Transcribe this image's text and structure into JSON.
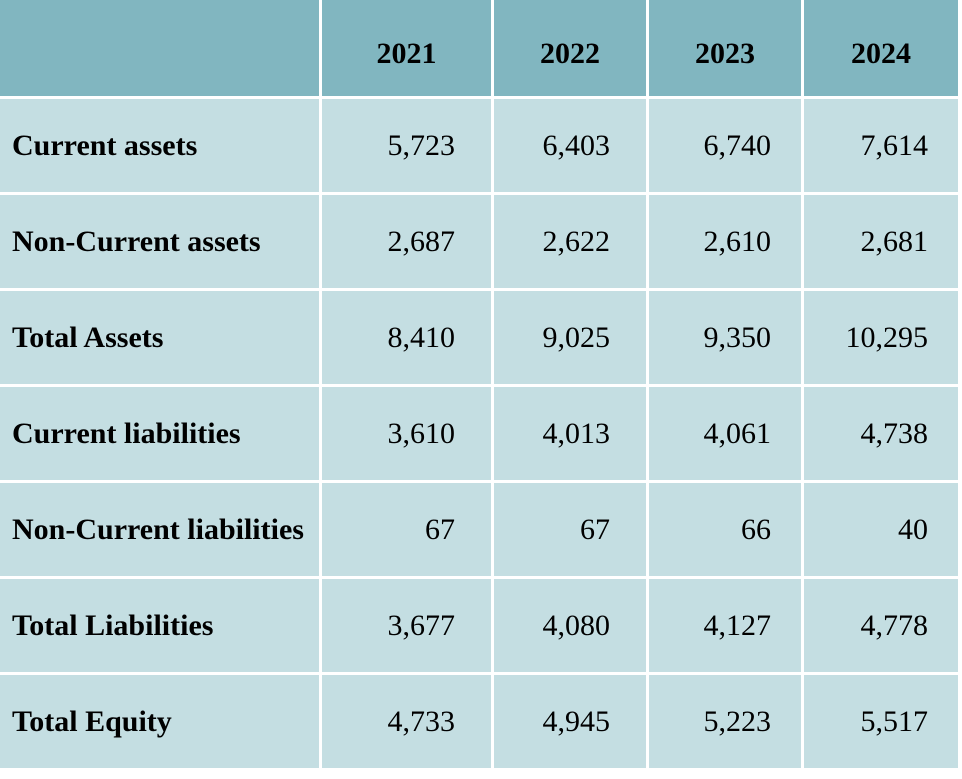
{
  "table": {
    "headers": [
      "",
      "2021",
      "2022",
      "2023",
      "2024"
    ],
    "rows": [
      {
        "label": "Current assets",
        "values": [
          "5,723",
          "6,403",
          "6,740",
          "7,614"
        ]
      },
      {
        "label": "Non-Current assets",
        "values": [
          "2,687",
          "2,622",
          "2,610",
          "2,681"
        ]
      },
      {
        "label": "Total Assets",
        "values": [
          "8,410",
          "9,025",
          "9,350",
          "10,295"
        ]
      },
      {
        "label": "Current liabilities",
        "values": [
          "3,610",
          "4,013",
          "4,061",
          "4,738"
        ]
      },
      {
        "label": "Non-Current liabilities",
        "values": [
          "67",
          "67",
          "66",
          "40"
        ]
      },
      {
        "label": "Total Liabilities",
        "values": [
          "3,677",
          "4,080",
          "4,127",
          "4,778"
        ]
      },
      {
        "label": "Total Equity",
        "values": [
          "4,733",
          "4,945",
          "5,223",
          "5,517"
        ]
      }
    ]
  },
  "colors": {
    "header_background": "#81b6c0",
    "body_background": "#c4dee2",
    "grid_lines": "#ffffff"
  }
}
